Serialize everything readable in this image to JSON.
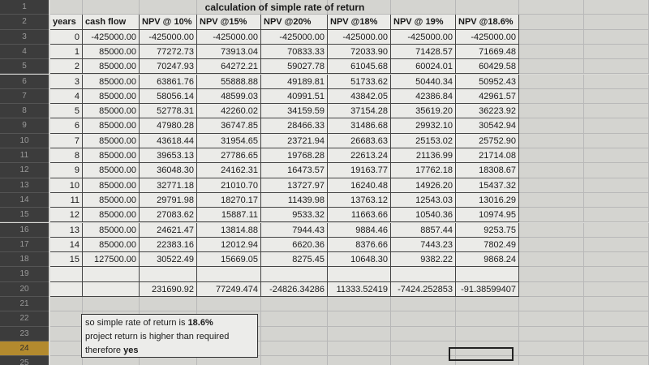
{
  "title": "calculation of simple rate of return",
  "row_numbers": [
    "1",
    "2",
    "3",
    "4",
    "5",
    "6",
    "7",
    "8",
    "9",
    "10",
    "11",
    "12",
    "13",
    "14",
    "15",
    "16",
    "17",
    "18",
    "19",
    "20",
    "21",
    "22",
    "23",
    "24",
    "25"
  ],
  "headers": [
    "years",
    "cash flow",
    "NPV @ 10%",
    "NPV @15%",
    "NPV @20%",
    "NPV @18%",
    "NPV @ 19%",
    "NPV @18.6%"
  ],
  "rows": [
    [
      "0",
      "-425000.00",
      "-425000.00",
      "-425000.00",
      "-425000.00",
      "-425000.00",
      "-425000.00",
      "-425000.00"
    ],
    [
      "1",
      "85000.00",
      "77272.73",
      "73913.04",
      "70833.33",
      "72033.90",
      "71428.57",
      "71669.48"
    ],
    [
      "2",
      "85000.00",
      "70247.93",
      "64272.21",
      "59027.78",
      "61045.68",
      "60024.01",
      "60429.58"
    ],
    [
      "3",
      "85000.00",
      "63861.76",
      "55888.88",
      "49189.81",
      "51733.62",
      "50440.34",
      "50952.43"
    ],
    [
      "4",
      "85000.00",
      "58056.14",
      "48599.03",
      "40991.51",
      "43842.05",
      "42386.84",
      "42961.57"
    ],
    [
      "5",
      "85000.00",
      "52778.31",
      "42260.02",
      "34159.59",
      "37154.28",
      "35619.20",
      "36223.92"
    ],
    [
      "6",
      "85000.00",
      "47980.28",
      "36747.85",
      "28466.33",
      "31486.68",
      "29932.10",
      "30542.94"
    ],
    [
      "7",
      "85000.00",
      "43618.44",
      "31954.65",
      "23721.94",
      "26683.63",
      "25153.02",
      "25752.90"
    ],
    [
      "8",
      "85000.00",
      "39653.13",
      "27786.65",
      "19768.28",
      "22613.24",
      "21136.99",
      "21714.08"
    ],
    [
      "9",
      "85000.00",
      "36048.30",
      "24162.31",
      "16473.57",
      "19163.77",
      "17762.18",
      "18308.67"
    ],
    [
      "10",
      "85000.00",
      "32771.18",
      "21010.70",
      "13727.97",
      "16240.48",
      "14926.20",
      "15437.32"
    ],
    [
      "11",
      "85000.00",
      "29791.98",
      "18270.17",
      "11439.98",
      "13763.12",
      "12543.03",
      "13016.29"
    ],
    [
      "12",
      "85000.00",
      "27083.62",
      "15887.11",
      "9533.32",
      "11663.66",
      "10540.36",
      "10974.95"
    ],
    [
      "13",
      "85000.00",
      "24621.47",
      "13814.88",
      "7944.43",
      "9884.46",
      "8857.44",
      "9253.75"
    ],
    [
      "14",
      "85000.00",
      "22383.16",
      "12012.94",
      "6620.36",
      "8376.66",
      "7443.23",
      "7802.49"
    ],
    [
      "15",
      "127500.00",
      "30522.49",
      "15669.05",
      "8275.45",
      "10648.30",
      "9382.22",
      "9868.24"
    ]
  ],
  "totals": [
    "231690.92",
    "77249.474",
    "-24826.34286",
    "11333.52419",
    "-7424.252853",
    "-91.38599407"
  ],
  "note": {
    "line1": [
      "so simple rate of return is ",
      "18.6%"
    ],
    "line2": "project return is higher than required",
    "line3": [
      "therefore ",
      "yes"
    ]
  }
}
